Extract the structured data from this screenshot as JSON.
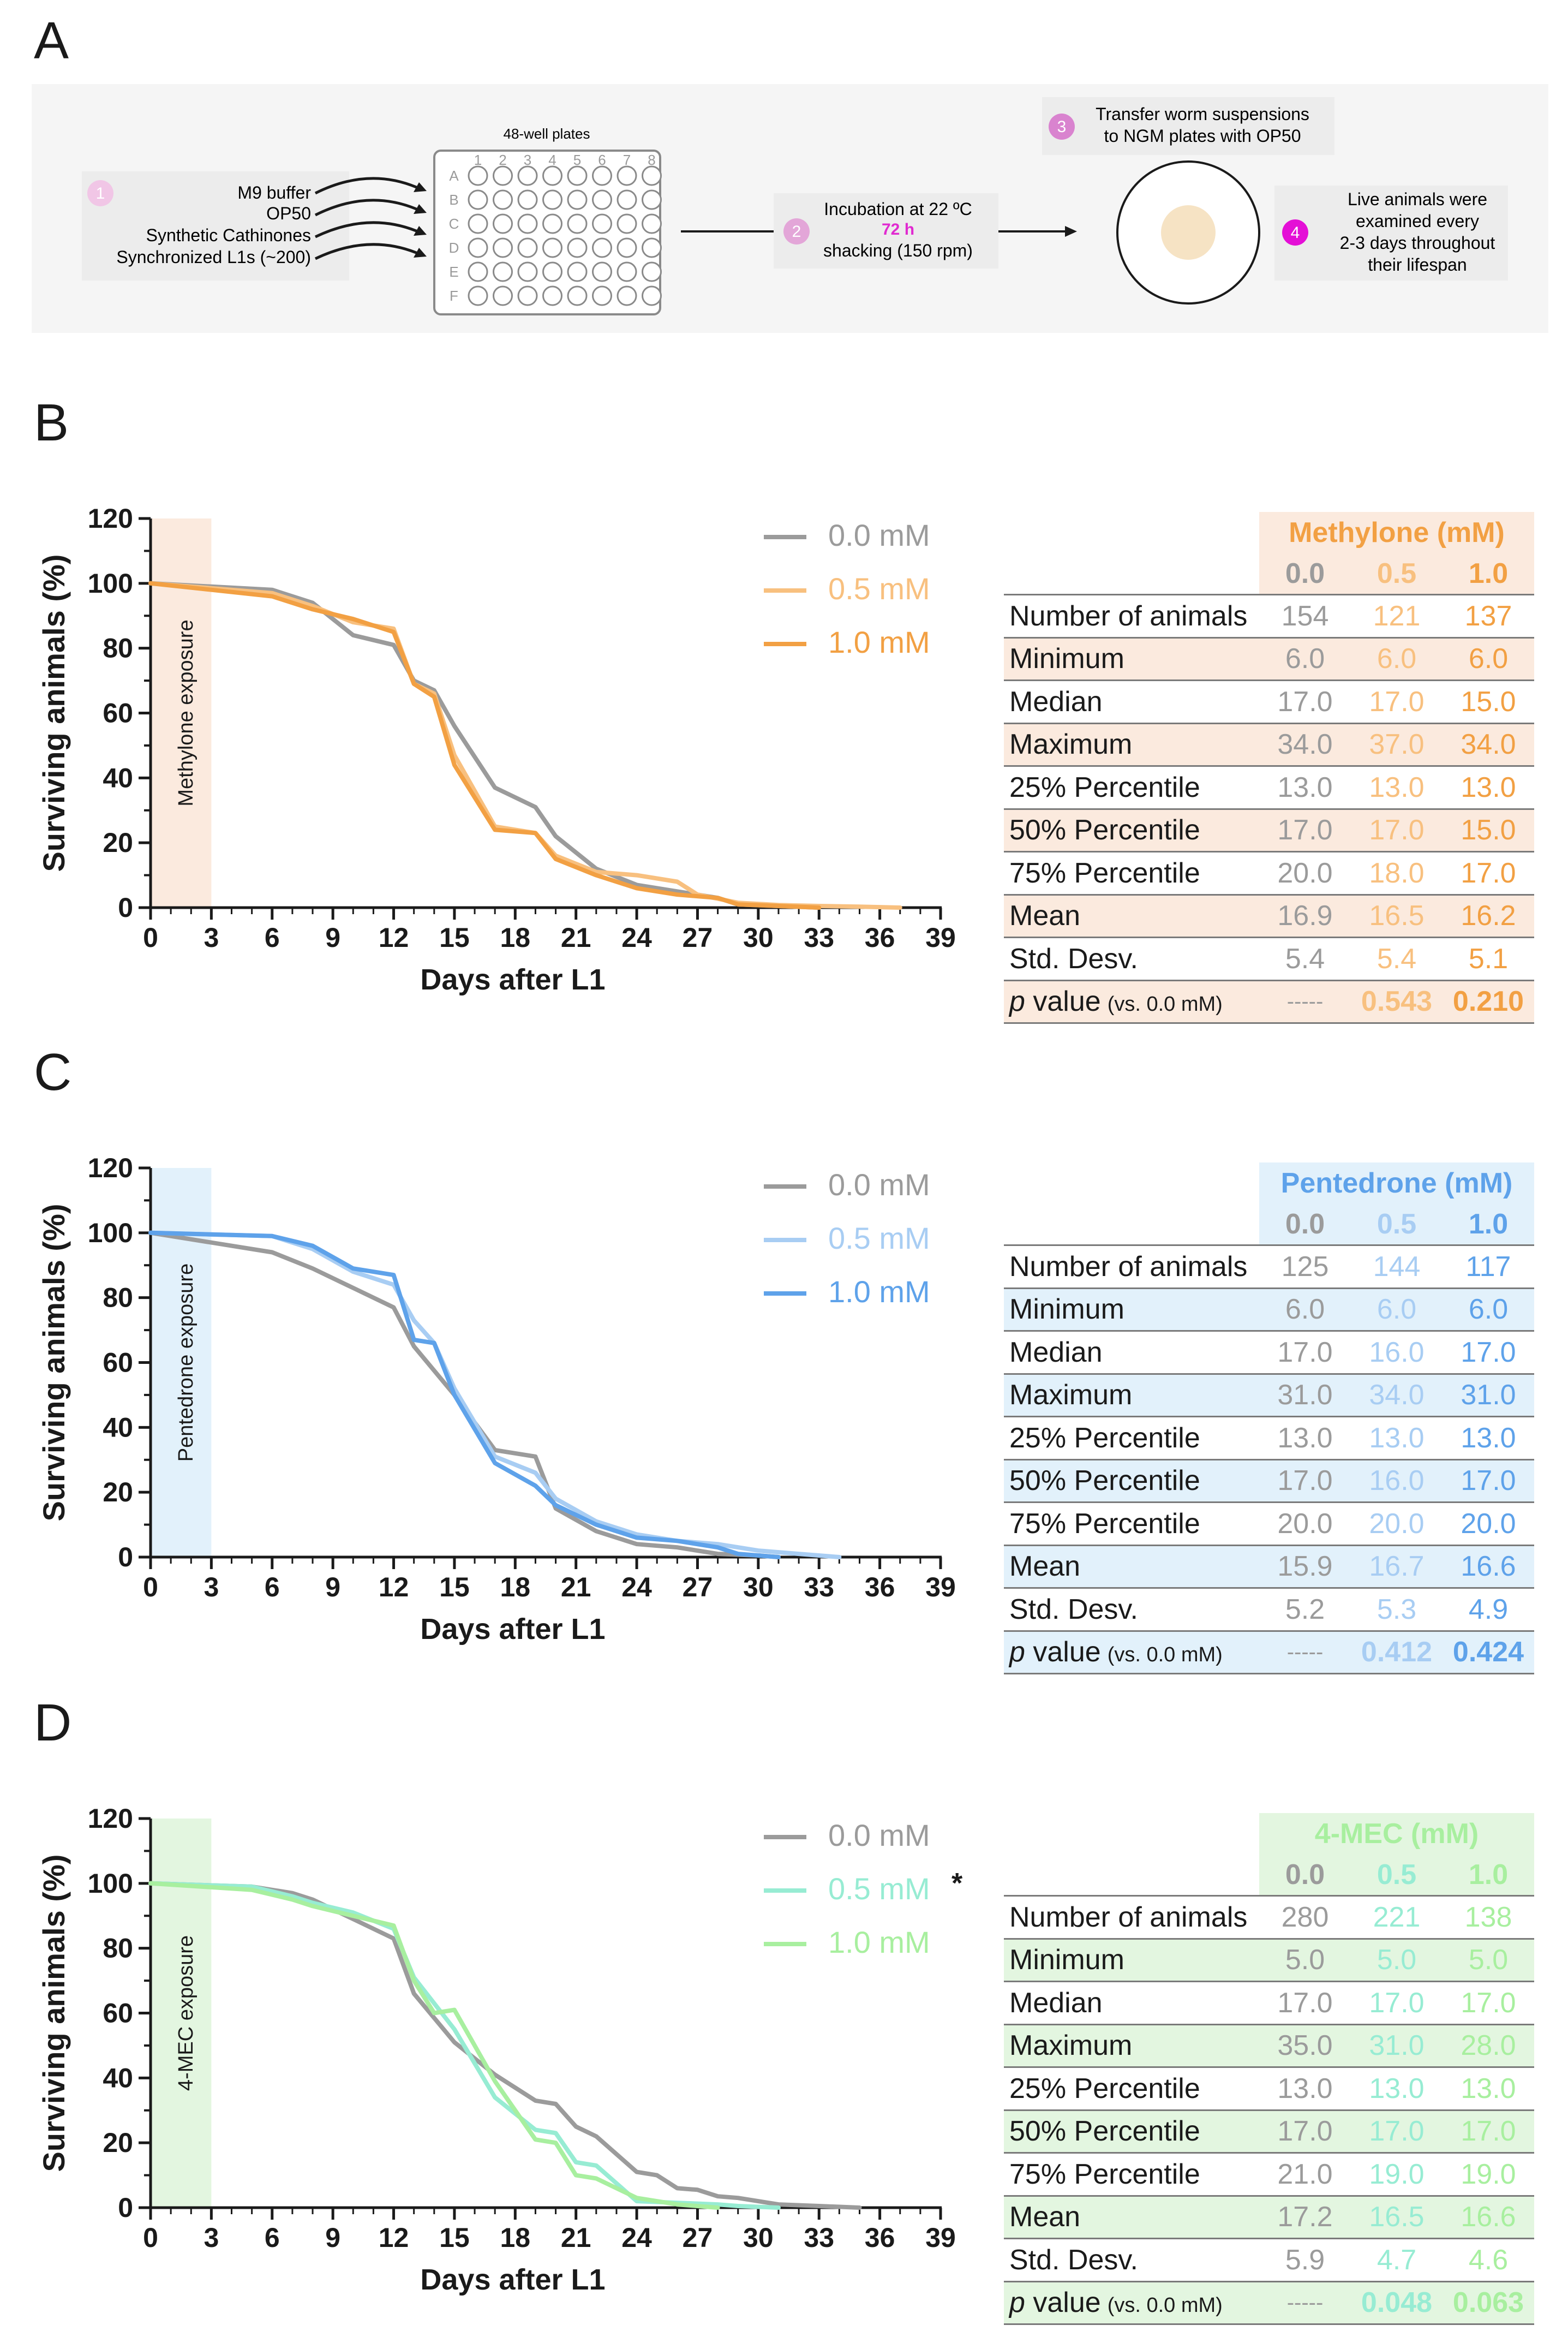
{
  "figure": {
    "panels": [
      {
        "letter": "A"
      },
      {
        "letter": "B"
      },
      {
        "letter": "C"
      },
      {
        "letter": "D"
      }
    ]
  },
  "schematic": {
    "step1_num": "1",
    "step1_items": [
      "M9 buffer",
      "OP50",
      "Synthetic Cathinones",
      "Synchronized L1s (~200)"
    ],
    "plate_title": "48-well plates",
    "plate_cols": [
      "1",
      "2",
      "3",
      "4",
      "5",
      "6",
      "7",
      "8"
    ],
    "plate_rows": [
      "A",
      "B",
      "C",
      "D",
      "E",
      "F"
    ],
    "step2_num": "2",
    "step2_line1": "Incubation at 22 ºC",
    "step2_line2": "72 h",
    "step2_line3": "shacking (150 rpm)",
    "step3_num": "3",
    "step3_line1": "Transfer worm suspensions",
    "step3_line2": "to NGM plates with OP50",
    "step4_num": "4",
    "step4_lines": [
      "Live animals were",
      "examined every",
      "2-3 days throughout",
      "their lifespan"
    ]
  },
  "colors": {
    "control": "#9b9b9b",
    "methylone_05": "#f8c07f",
    "methylone_10": "#f2a043",
    "methylone_bg": "#fbeade",
    "pentedrone_05": "#a8cdf3",
    "pentedrone_10": "#5ea2ea",
    "pentedrone_bg": "#e2f1fb",
    "mec_05": "#97ecd3",
    "mec_10": "#a8ef9f",
    "mec_bg": "#e3f6e0"
  },
  "chart_data": [
    {
      "type": "line",
      "title": "",
      "xlabel": "Days after L1",
      "ylabel": "Surviving animals (%)",
      "xlim": [
        0,
        39
      ],
      "ylim": [
        0,
        120
      ],
      "xticks": [
        0,
        3,
        6,
        9,
        12,
        15,
        18,
        21,
        24,
        27,
        30,
        33,
        36,
        39
      ],
      "yticks": [
        0,
        20,
        40,
        60,
        80,
        100,
        120
      ],
      "exposure_label": "Methylone exposure",
      "exposure_range": [
        0,
        3
      ],
      "legend": [
        "0.0 mM",
        "0.5 mM",
        "1.0 mM"
      ],
      "legend_mark": [
        "",
        "",
        ""
      ],
      "series": [
        {
          "name": "0.0 mM",
          "x": [
            0,
            6,
            8,
            10,
            12,
            13,
            14,
            15,
            17,
            19,
            20,
            22,
            24,
            26,
            28,
            29,
            31,
            33
          ],
          "y": [
            100,
            98,
            94,
            84,
            81,
            70,
            67,
            56,
            37,
            31,
            22,
            12,
            7,
            5,
            3,
            1,
            0.5,
            0
          ]
        },
        {
          "name": "0.5 mM",
          "x": [
            0,
            6,
            8,
            10,
            12,
            13,
            14,
            15,
            17,
            19,
            20,
            22,
            24,
            26,
            27,
            29,
            31,
            33,
            35,
            37
          ],
          "y": [
            100,
            97,
            93,
            88,
            86,
            69,
            66,
            47,
            25,
            23,
            16,
            11,
            10,
            8,
            4,
            1.5,
            0.8,
            0.5,
            0.3,
            0
          ]
        },
        {
          "name": "1.0 mM",
          "x": [
            0,
            6,
            8,
            10,
            12,
            13,
            14,
            15,
            17,
            19,
            20,
            22,
            24,
            26,
            28,
            29,
            31,
            33
          ],
          "y": [
            100,
            96,
            92,
            89,
            85,
            69,
            65,
            44,
            24,
            23,
            15,
            10,
            6,
            4,
            3,
            1,
            0.5,
            0
          ]
        }
      ]
    },
    {
      "type": "line",
      "title": "",
      "xlabel": "Days after L1",
      "ylabel": "Surviving animals (%)",
      "xlim": [
        0,
        39
      ],
      "ylim": [
        0,
        120
      ],
      "xticks": [
        0,
        3,
        6,
        9,
        12,
        15,
        18,
        21,
        24,
        27,
        30,
        33,
        36,
        39
      ],
      "yticks": [
        0,
        20,
        40,
        60,
        80,
        100,
        120
      ],
      "exposure_label": "Pentedrone exposure",
      "exposure_range": [
        0,
        3
      ],
      "legend": [
        "0.0 mM",
        "0.5 mM",
        "1.0 mM"
      ],
      "legend_mark": [
        "",
        "",
        ""
      ],
      "series": [
        {
          "name": "0.0 mM",
          "x": [
            0,
            6,
            8,
            10,
            12,
            13,
            15,
            17,
            19,
            20,
            22,
            24,
            26,
            28,
            30,
            31
          ],
          "y": [
            100,
            94,
            89,
            83,
            77,
            65,
            50,
            33,
            31,
            15,
            8,
            4,
            3,
            1,
            0.5,
            0
          ]
        },
        {
          "name": "0.5 mM",
          "x": [
            0,
            6,
            8,
            10,
            12,
            13,
            14,
            15,
            17,
            19,
            20,
            22,
            24,
            26,
            28,
            30,
            32,
            34
          ],
          "y": [
            100,
            99,
            95,
            88,
            84,
            73,
            66,
            52,
            31,
            26,
            18,
            11,
            7,
            5,
            4,
            2,
            1,
            0
          ]
        },
        {
          "name": "1.0 mM",
          "x": [
            0,
            6,
            8,
            10,
            12,
            13,
            14,
            15,
            17,
            19,
            20,
            22,
            24,
            26,
            28,
            29,
            31
          ],
          "y": [
            100,
            99,
            96,
            89,
            87,
            67,
            66,
            50,
            29,
            22,
            16,
            10,
            6,
            5,
            3,
            1,
            0
          ]
        }
      ]
    },
    {
      "type": "line",
      "title": "",
      "xlabel": "Days after L1",
      "ylabel": "Surviving animals (%)",
      "xlim": [
        0,
        39
      ],
      "ylim": [
        0,
        120
      ],
      "xticks": [
        0,
        3,
        6,
        9,
        12,
        15,
        18,
        21,
        24,
        27,
        30,
        33,
        36,
        39
      ],
      "yticks": [
        0,
        20,
        40,
        60,
        80,
        100,
        120
      ],
      "exposure_label": "4-MEC exposure",
      "exposure_range": [
        0,
        3
      ],
      "legend": [
        "0.0 mM",
        "0.5 mM",
        "1.0 mM"
      ],
      "legend_mark": [
        "",
        "*",
        ""
      ],
      "series": [
        {
          "name": "0.0 mM",
          "x": [
            0,
            5,
            7,
            8,
            10,
            12,
            13,
            15,
            17,
            19,
            20,
            21,
            22,
            24,
            25,
            26,
            27,
            28,
            29,
            31,
            33,
            35
          ],
          "y": [
            100,
            99,
            97,
            95,
            89,
            83,
            66,
            51,
            41,
            33,
            32,
            25,
            22,
            11,
            10,
            6,
            5.5,
            3.5,
            3,
            1,
            0.5,
            0
          ]
        },
        {
          "name": "0.5 mM",
          "x": [
            0,
            5,
            7,
            8,
            10,
            12,
            13,
            15,
            17,
            19,
            20,
            21,
            22,
            24,
            26,
            28,
            29,
            31
          ],
          "y": [
            100,
            99,
            96,
            94,
            91,
            86,
            71,
            55,
            34,
            24,
            23,
            14,
            13,
            2,
            1.5,
            1,
            0.5,
            0
          ]
        },
        {
          "name": "1.0 mM",
          "x": [
            0,
            5,
            7,
            8,
            10,
            12,
            13,
            14,
            15,
            17,
            19,
            20,
            21,
            22,
            24,
            26,
            28
          ],
          "y": [
            100,
            98,
            95,
            93,
            90,
            87,
            70,
            60,
            61,
            39,
            21,
            20,
            10,
            9,
            3,
            1,
            0
          ]
        }
      ]
    }
  ],
  "tables": [
    {
      "title": "Methylone (mM)",
      "concs": [
        "0.0",
        "0.5",
        "1.0"
      ],
      "rows": [
        {
          "label": "Number of animals",
          "values": [
            "154",
            "121",
            "137"
          ]
        },
        {
          "label": "Minimum",
          "values": [
            "6.0",
            "6.0",
            "6.0"
          ]
        },
        {
          "label": "Median",
          "values": [
            "17.0",
            "17.0",
            "15.0"
          ]
        },
        {
          "label": "Maximum",
          "values": [
            "34.0",
            "37.0",
            "34.0"
          ]
        },
        {
          "label": "25% Percentile",
          "values": [
            "13.0",
            "13.0",
            "13.0"
          ]
        },
        {
          "label": "50% Percentile",
          "values": [
            "17.0",
            "17.0",
            "15.0"
          ]
        },
        {
          "label": "75% Percentile",
          "values": [
            "20.0",
            "18.0",
            "17.0"
          ]
        },
        {
          "label": "Mean",
          "values": [
            "16.9",
            "16.5",
            "16.2"
          ]
        },
        {
          "label": "Std. Desv.",
          "values": [
            "5.4",
            "5.4",
            "5.1"
          ]
        }
      ],
      "p_label": "p",
      "p_label_rest": " value",
      "p_label_small": "(vs. 0.0 mM)",
      "p_values": [
        "-----",
        "0.543",
        "0.210"
      ]
    },
    {
      "title": "Pentedrone (mM)",
      "concs": [
        "0.0",
        "0.5",
        "1.0"
      ],
      "rows": [
        {
          "label": "Number of animals",
          "values": [
            "125",
            "144",
            "117"
          ]
        },
        {
          "label": "Minimum",
          "values": [
            "6.0",
            "6.0",
            "6.0"
          ]
        },
        {
          "label": "Median",
          "values": [
            "17.0",
            "16.0",
            "17.0"
          ]
        },
        {
          "label": "Maximum",
          "values": [
            "31.0",
            "34.0",
            "31.0"
          ]
        },
        {
          "label": "25% Percentile",
          "values": [
            "13.0",
            "13.0",
            "13.0"
          ]
        },
        {
          "label": "50% Percentile",
          "values": [
            "17.0",
            "16.0",
            "17.0"
          ]
        },
        {
          "label": "75% Percentile",
          "values": [
            "20.0",
            "20.0",
            "20.0"
          ]
        },
        {
          "label": "Mean",
          "values": [
            "15.9",
            "16.7",
            "16.6"
          ]
        },
        {
          "label": "Std. Desv.",
          "values": [
            "5.2",
            "5.3",
            "4.9"
          ]
        }
      ],
      "p_label": "p",
      "p_label_rest": " value",
      "p_label_small": "(vs. 0.0 mM)",
      "p_values": [
        "-----",
        "0.412",
        "0.424"
      ]
    },
    {
      "title": "4-MEC (mM)",
      "concs": [
        "0.0",
        "0.5",
        "1.0"
      ],
      "rows": [
        {
          "label": "Number of animals",
          "values": [
            "280",
            "221",
            "138"
          ]
        },
        {
          "label": "Minimum",
          "values": [
            "5.0",
            "5.0",
            "5.0"
          ]
        },
        {
          "label": "Median",
          "values": [
            "17.0",
            "17.0",
            "17.0"
          ]
        },
        {
          "label": "Maximum",
          "values": [
            "35.0",
            "31.0",
            "28.0"
          ]
        },
        {
          "label": "25% Percentile",
          "values": [
            "13.0",
            "13.0",
            "13.0"
          ]
        },
        {
          "label": "50% Percentile",
          "values": [
            "17.0",
            "17.0",
            "17.0"
          ]
        },
        {
          "label": "75% Percentile",
          "values": [
            "21.0",
            "19.0",
            "19.0"
          ]
        },
        {
          "label": "Mean",
          "values": [
            "17.2",
            "16.5",
            "16.6"
          ]
        },
        {
          "label": "Std. Desv.",
          "values": [
            "5.9",
            "4.7",
            "4.6"
          ]
        }
      ],
      "p_label": "p",
      "p_label_rest": " value",
      "p_label_small": "(vs. 0.0 mM)",
      "p_values": [
        "-----",
        "0.048",
        "0.063"
      ]
    }
  ]
}
